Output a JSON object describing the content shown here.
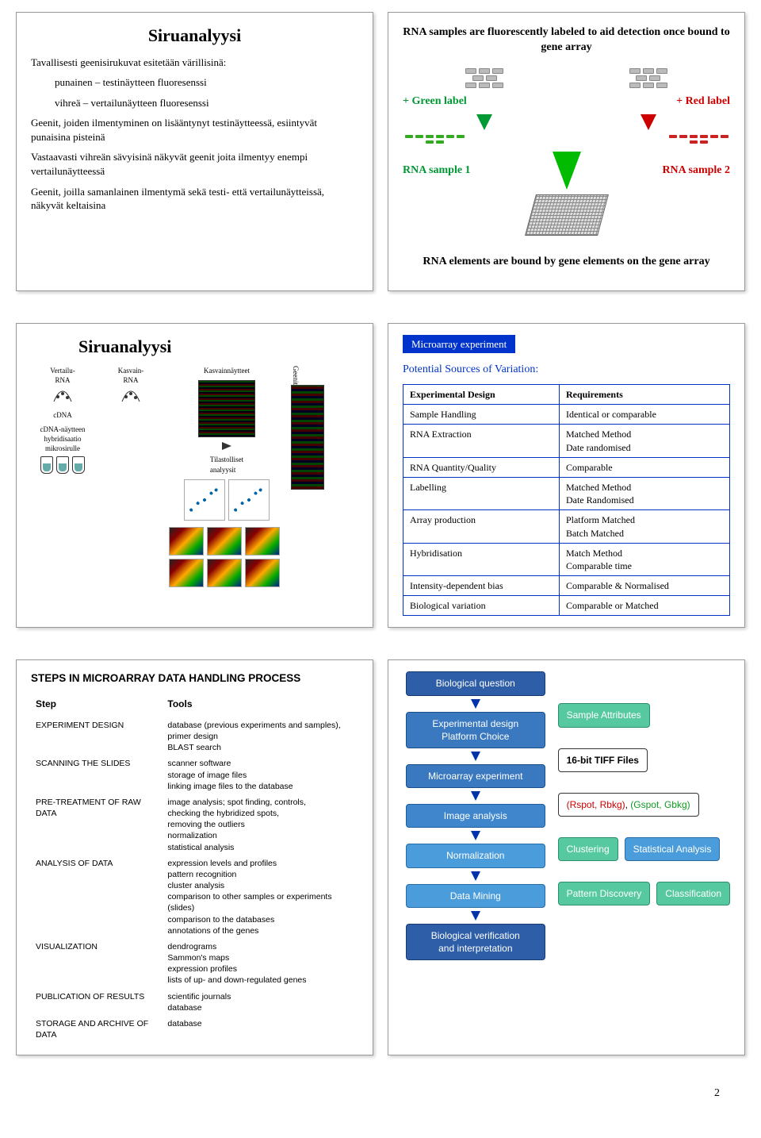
{
  "page_number": "2",
  "panel1": {
    "title": "Siruanalyysi",
    "intro": "Tavallisesti geenisirukuvat esitetään värillisinä:",
    "line_red": "punainen – testinäytteen fluoresenssi",
    "line_green": "vihreä – vertailunäytteen fluoresenssi",
    "para2": "Geenit, joiden ilmentyminen on lisääntynyt testinäytteessä, esiintyvät punaisina pisteinä",
    "para3": "Vastaavasti vihreän sävyisinä näkyvät geenit joita ilmentyy enempi vertailunäytteessä",
    "para4": "Geenit, joilla samanlainen ilmentymä sekä testi- että vertailunäytteissä, näkyvät keltaisina"
  },
  "panel2": {
    "top_caption": "RNA samples are fluorescently labeled to aid detection once bound to gene array",
    "green_label": "+ Green label",
    "red_label": "+ Red label",
    "sample1": "RNA sample 1",
    "sample2": "RNA sample 2",
    "bottom_caption": "RNA elements are bound by gene elements on the gene array",
    "colors": {
      "green": "#009933",
      "red": "#cc0000"
    }
  },
  "panel3": {
    "title": "Siruanalyysi",
    "labels": {
      "vertailu": "Vertailu-\nRNA",
      "kasvain": "Kasvain-\nRNA",
      "kasvain_samples": "Kasvainnäytteet",
      "cdna": "cDNA",
      "hybrid": "cDNA-näytteen\nhybridisaatio\nmikrosirulle",
      "tilast": "Tilastolliset\nanalyysit",
      "geenit": "Geenit"
    }
  },
  "panel4": {
    "box": "Microarray experiment",
    "subtitle": "Potential Sources of Variation:",
    "headers": [
      "Experimental Design",
      "Requirements"
    ],
    "rows": [
      [
        "Sample Handling",
        "Identical or comparable"
      ],
      [
        "RNA Extraction",
        "Matched Method\nDate randomised"
      ],
      [
        "RNA Quantity/Quality",
        "Comparable"
      ],
      [
        "Labelling",
        "Matched Method\nDate Randomised"
      ],
      [
        "Array production",
        "Platform Matched\nBatch Matched"
      ],
      [
        "Hybridisation",
        "Match Method\nComparable time"
      ],
      [
        "Intensity-dependent bias",
        "Comparable & Normalised"
      ],
      [
        "Biological variation",
        "Comparable or Matched"
      ]
    ],
    "border_color": "#0033cc"
  },
  "panel5": {
    "title": "STEPS IN MICROARRAY DATA HANDLING PROCESS",
    "col_headers": [
      "Step",
      "Tools"
    ],
    "rows": [
      [
        "EXPERIMENT DESIGN",
        "database (previous experiments and samples), primer design\nBLAST search"
      ],
      [
        "SCANNING THE SLIDES",
        "scanner software\nstorage of image files\nlinking image files to the database"
      ],
      [
        "PRE-TREATMENT OF RAW DATA",
        "image analysis; spot finding, controls,\nchecking the hybridized spots,\nremoving the outliers\nnormalization\nstatistical analysis"
      ],
      [
        "ANALYSIS OF DATA",
        "expression levels and profiles\npattern recognition\ncluster analysis\ncomparison to other samples or experiments (slides)\ncomparison to the databases\nannotations of the genes"
      ],
      [
        "VISUALIZATION",
        "dendrograms\nSammon's maps\nexpression profiles\nlists of up- and down-regulated genes"
      ],
      [
        "PUBLICATION OF RESULTS",
        "scientific journals\ndatabase"
      ],
      [
        "STORAGE AND ARCHIVE OF DATA",
        "database"
      ]
    ]
  },
  "panel6": {
    "main_flow": [
      {
        "label": "Biological question",
        "bg": "#2e5ea8",
        "border": "#173a75"
      },
      {
        "label": "Experimental design\nPlatform Choice",
        "bg": "#3a78bf",
        "border": "#1c4f8a"
      },
      {
        "label": "Microarray experiment",
        "bg": "#3a78bf",
        "border": "#1c4f8a"
      },
      {
        "label": "Image analysis",
        "bg": "#3f86cc",
        "border": "#205c9a"
      },
      {
        "label": "Normalization",
        "bg": "#4a9cdb",
        "border": "#2a6ca5"
      },
      {
        "label": "Data Mining",
        "bg": "#4a9cdb",
        "border": "#2a6ca5"
      },
      {
        "label": "Biological verification\nand interpretation",
        "bg": "#2e5ea8",
        "border": "#173a75"
      }
    ],
    "side": [
      {
        "label": "Sample Attributes",
        "bg": "#57c9a0",
        "border": "#2c8f6b",
        "color": "#fff"
      },
      {
        "label": "16-bit TIFF Files",
        "bg": "#ffffff",
        "border": "#333",
        "color": "#000",
        "bold": true
      },
      {
        "html": "<span style='color:#cc0000'>(Rspot, Rbkg)</span>, <span style='color:#119922'>(Gspot, Gbkg)</span>",
        "bg": "#ffffff",
        "border": "#333",
        "color": "#000"
      },
      {
        "group": [
          {
            "label": "Clustering",
            "bg": "#57c9a0",
            "border": "#2c8f6b",
            "color": "#fff"
          },
          {
            "label": "Statistical Analysis",
            "bg": "#4a9cdb",
            "border": "#2a6ca5",
            "color": "#fff"
          }
        ]
      },
      {
        "group": [
          {
            "label": "Pattern Discovery",
            "bg": "#57c9a0",
            "border": "#2c8f6b",
            "color": "#fff"
          },
          {
            "label": "Classification",
            "bg": "#57c9a0",
            "border": "#2c8f6b",
            "color": "#fff"
          }
        ]
      }
    ]
  }
}
